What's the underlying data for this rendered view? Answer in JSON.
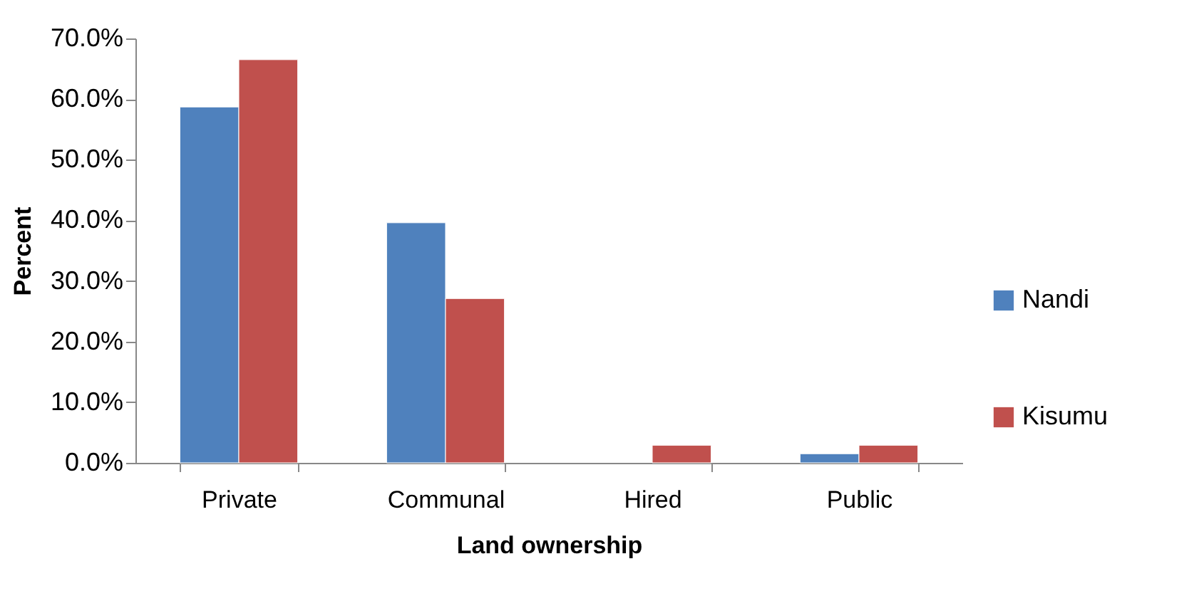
{
  "chart_data": {
    "type": "bar",
    "xlabel": "Land ownership",
    "ylabel": "Percent",
    "categories": [
      "Private",
      "Communal",
      "Hired",
      "Public"
    ],
    "series": [
      {
        "name": "Nandi",
        "color": "#4f81bd",
        "values": [
          58.7,
          39.6,
          null,
          1.5
        ]
      },
      {
        "name": "Kisumu",
        "color": "#c0504d",
        "values": [
          66.5,
          27.1,
          2.9,
          2.9
        ]
      }
    ],
    "ylim": [
      0,
      70
    ],
    "yticks": [
      {
        "value": 0,
        "label": "0.0%"
      },
      {
        "value": 10,
        "label": "10.0%"
      },
      {
        "value": 20,
        "label": "20.0%"
      },
      {
        "value": 30,
        "label": "30.0%"
      },
      {
        "value": 40,
        "label": "40.0%"
      },
      {
        "value": 50,
        "label": "50.0%"
      },
      {
        "value": 60,
        "label": "60.0%"
      },
      {
        "value": 70,
        "label": "70.0%"
      }
    ],
    "grid": false,
    "legend": "right"
  }
}
